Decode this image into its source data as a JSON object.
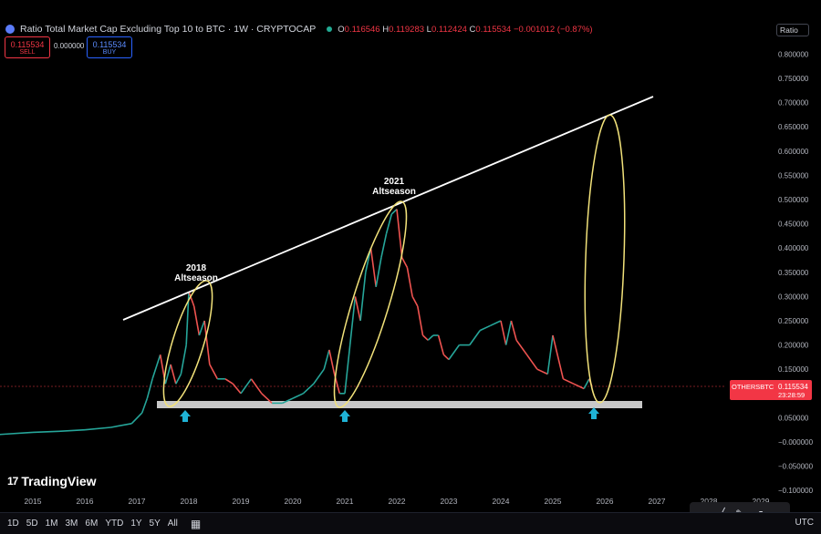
{
  "header": {
    "title": "Ratio Total Market Cap Excluding Top 10 to BTC · 1W · CRYPTOCAP",
    "open_label": "O",
    "open": "0.116546",
    "high_label": "H",
    "high": "0.119283",
    "low_label": "L",
    "low": "0.112424",
    "close_label": "C",
    "close": "0.115534",
    "change": "−0.001012 (−0.87%)"
  },
  "trade": {
    "sell_price": "0.115534",
    "sell_label": "SELL",
    "spread": "0.000000",
    "buy_price": "0.115534",
    "buy_label": "BUY"
  },
  "scale_mode": "Ratio",
  "price_tag": {
    "symbol": "OTHERSBTC",
    "price": "0.115534",
    "countdown": "23:28:59",
    "color": "#f23645"
  },
  "brand": "TradingView",
  "ranges": [
    "1D",
    "5D",
    "1M",
    "3M",
    "6M",
    "YTD",
    "1Y",
    "5Y",
    "All"
  ],
  "timezone": "UTC",
  "icons": [
    "calendar-icon",
    "pattern-icon",
    "trendline-icon",
    "brush-icon",
    "arrow-icon",
    "ruler-icon"
  ],
  "colors": {
    "up": "#26a69a",
    "down": "#ef5350",
    "trendline": "#ffffff",
    "highlight": "#f2e27a",
    "support": "#c8c8c8",
    "arrow": "#1fb3d6"
  },
  "chart_data": {
    "type": "line",
    "title": "Ratio Total Market Cap Excluding Top 10 to BTC",
    "x_ticks": [
      "2015",
      "2016",
      "2017",
      "2018",
      "2019",
      "2020",
      "2021",
      "2022",
      "2023",
      "2024",
      "2025",
      "2026",
      "2027",
      "2028",
      "2029"
    ],
    "y_ticks": [
      "0.800000",
      "0.750000",
      "0.700000",
      "0.650000",
      "0.600000",
      "0.550000",
      "0.500000",
      "0.450000",
      "0.400000",
      "0.350000",
      "0.300000",
      "0.250000",
      "0.200000",
      "0.150000",
      "0.100000",
      "0.050000",
      "−0.000000",
      "−0.050000",
      "−0.100000"
    ],
    "ylim": [
      -0.1,
      0.8
    ],
    "series": [
      {
        "x": [
          2014.3,
          2015.0,
          2015.5,
          2016.0,
          2016.5,
          2016.9,
          2017.1,
          2017.2,
          2017.3,
          2017.45,
          2017.55,
          2017.65,
          2017.75,
          2017.85,
          2017.95,
          2018.0,
          2018.1,
          2018.2,
          2018.3,
          2018.4,
          2018.55,
          2018.7,
          2018.85,
          2019.0,
          2019.2,
          2019.4,
          2019.6,
          2019.8,
          2020.0,
          2020.2,
          2020.4,
          2020.6,
          2020.7,
          2020.8,
          2020.9,
          2021.0,
          2021.1,
          2021.2,
          2021.3,
          2021.4,
          2021.5,
          2021.6,
          2021.7,
          2021.8,
          2021.9,
          2022.0,
          2022.1,
          2022.2,
          2022.3,
          2022.4,
          2022.5,
          2022.6,
          2022.7,
          2022.8,
          2022.9,
          2023.0,
          2023.2,
          2023.4,
          2023.6,
          2023.8,
          2024.0,
          2024.1,
          2024.2,
          2024.3,
          2024.5,
          2024.7,
          2024.9,
          2025.0,
          2025.2,
          2025.4,
          2025.6,
          2025.7,
          2025.75
        ],
        "y": [
          0.015,
          0.02,
          0.022,
          0.025,
          0.03,
          0.038,
          0.06,
          0.09,
          0.13,
          0.18,
          0.12,
          0.16,
          0.12,
          0.14,
          0.2,
          0.31,
          0.28,
          0.22,
          0.25,
          0.16,
          0.13,
          0.13,
          0.12,
          0.1,
          0.13,
          0.1,
          0.08,
          0.08,
          0.09,
          0.1,
          0.12,
          0.15,
          0.19,
          0.14,
          0.1,
          0.1,
          0.2,
          0.3,
          0.25,
          0.35,
          0.4,
          0.32,
          0.38,
          0.43,
          0.47,
          0.48,
          0.38,
          0.36,
          0.3,
          0.28,
          0.22,
          0.21,
          0.22,
          0.22,
          0.18,
          0.17,
          0.2,
          0.2,
          0.23,
          0.24,
          0.25,
          0.2,
          0.25,
          0.21,
          0.18,
          0.15,
          0.14,
          0.22,
          0.13,
          0.12,
          0.11,
          0.13,
          0.115
        ]
      }
    ],
    "annotations": [
      {
        "text": "2018",
        "text2": "Altseason"
      },
      {
        "text": "2021",
        "text2": "Altseason"
      }
    ]
  }
}
